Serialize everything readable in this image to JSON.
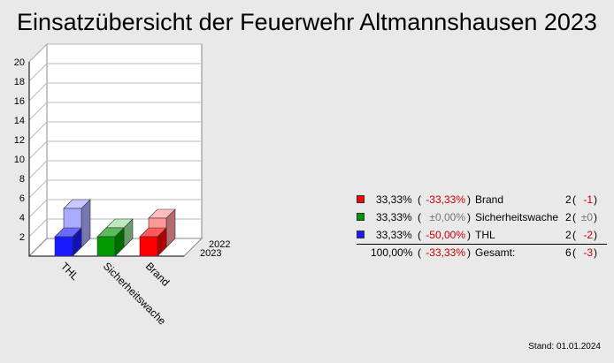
{
  "title": "Einsatzübersicht der Feuerwehr Altmannshausen 2023",
  "chart_data": {
    "type": "bar",
    "title": "Einsatzübersicht der Feuerwehr Altmannshausen 2023",
    "categories": [
      "THL",
      "Sicherheitswache",
      "Brand"
    ],
    "series": [
      {
        "name": "2023",
        "values": [
          2,
          2,
          2
        ],
        "colors": [
          "#1a1aff",
          "#009900",
          "#ff0000"
        ]
      },
      {
        "name": "2022",
        "values": [
          4,
          2,
          3
        ],
        "colors": [
          "#aaaaff",
          "#99dd99",
          "#ff9999"
        ]
      }
    ],
    "ylim": [
      0,
      20
    ],
    "yticks": [
      "2",
      "4",
      "6",
      "8",
      "10",
      "12",
      "14",
      "16",
      "18",
      "20"
    ],
    "grid": true,
    "three_d": true
  },
  "legend": {
    "rows": [
      {
        "color": "#ff0000",
        "pct": "33,33%",
        "paren_open": "(",
        "change": "-33,33%",
        "change_style": "red",
        "paren_close": ")",
        "category": "Brand",
        "count": "2",
        "delta_open": "(",
        "delta": "-1",
        "delta_style": "red",
        "delta_close": ")"
      },
      {
        "color": "#009900",
        "pct": "33,33%",
        "paren_open": "(",
        "change": "±0,00%",
        "change_style": "grey",
        "paren_close": ")",
        "category": "Sicherheitswache",
        "count": "2",
        "delta_open": "(",
        "delta": "±0",
        "delta_style": "grey",
        "delta_close": ")"
      },
      {
        "color": "#1a1aff",
        "pct": "33,33%",
        "paren_open": "(",
        "change": "-50,00%",
        "change_style": "red",
        "paren_close": ")",
        "category": "THL",
        "count": "2",
        "delta_open": "(",
        "delta": "-2",
        "delta_style": "red",
        "delta_close": ")"
      }
    ],
    "total": {
      "pct": "100,00%",
      "paren_open": "(",
      "change": "-33,33%",
      "paren_close": ")",
      "category": "Gesamt:",
      "count": "6",
      "delta_open": "(",
      "delta": "-3",
      "delta_close": ")"
    }
  },
  "stand": "Stand: 01.01.2024"
}
